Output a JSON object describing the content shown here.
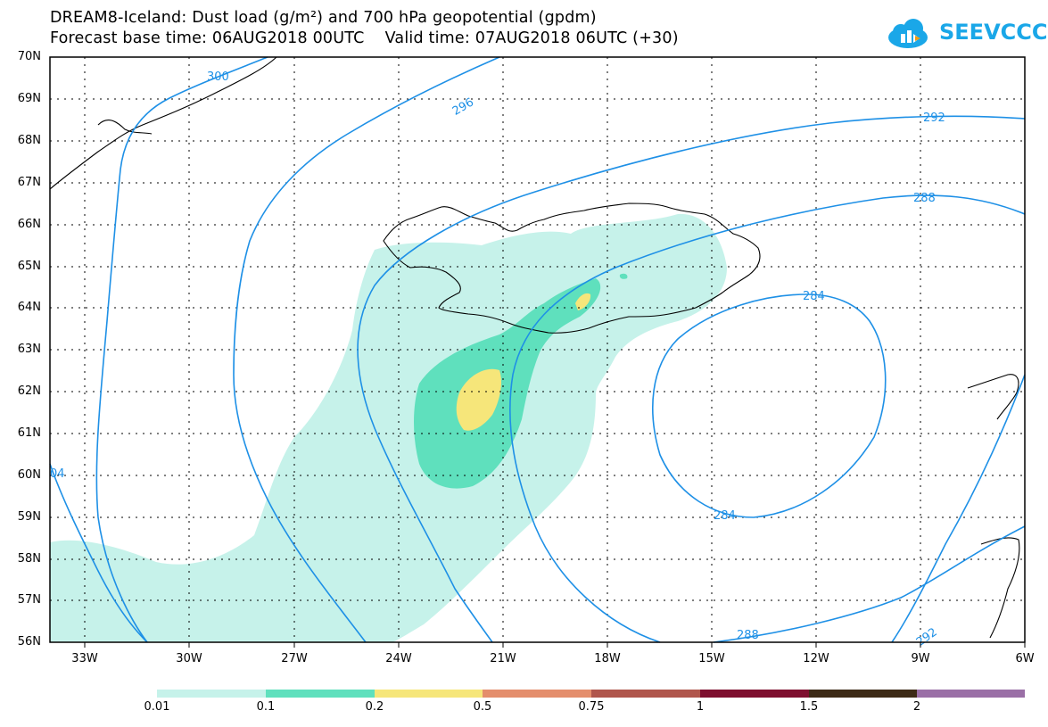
{
  "title": {
    "line1": "DREAM8-Iceland: Dust load (g/m²) and 700 hPa geopotential (gpdm)",
    "line2": "Forecast base time: 06AUG2018 00UTC    Valid time: 07AUG2018 06UTC (+30)"
  },
  "logo": {
    "text": "SEEVCCC",
    "icon": "cloud-icon"
  },
  "map": {
    "lat_labels": [
      "70N",
      "69N",
      "68N",
      "67N",
      "66N",
      "65N",
      "64N",
      "63N",
      "62N",
      "61N",
      "60N",
      "59N",
      "58N",
      "57N",
      "56N"
    ],
    "lon_labels": [
      "33W",
      "30W",
      "27W",
      "24W",
      "21W",
      "18W",
      "15W",
      "12W",
      "9W",
      "6W"
    ],
    "contour_labels": [
      "300",
      "296",
      "292",
      "292",
      "288",
      "288",
      "284",
      "284",
      "04"
    ]
  },
  "colorbar": {
    "labels": [
      "0.01",
      "0.1",
      "0.2",
      "0.5",
      "0.75",
      "1",
      "1.5",
      "2"
    ],
    "colors": [
      "#c6f2ea",
      "#5fe0bd",
      "#f6e67a",
      "#e48e6c",
      "#b0564c",
      "#7e0f2f",
      "#3d2a16",
      "#9a6fa6"
    ]
  },
  "colors": {
    "contour": "#1e90e6",
    "coast": "#000000"
  }
}
